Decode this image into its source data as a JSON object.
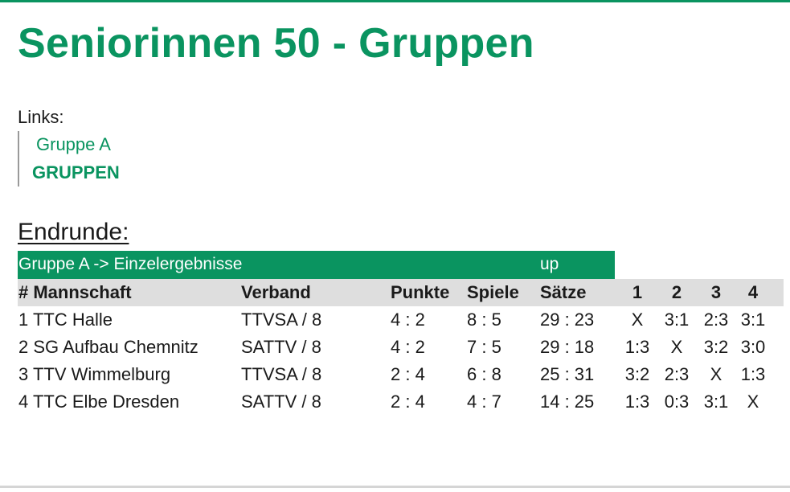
{
  "page_title": "Seniorinnen 50 - Gruppen",
  "links": {
    "label": "Links:",
    "items": [
      "Gruppe A",
      "GRUPPEN"
    ]
  },
  "section_heading": "Endrunde:",
  "group": {
    "title": "Gruppe A -> Einzelergebnisse",
    "up_link": "up"
  },
  "table": {
    "columns": [
      "# Mannschaft",
      "Verband",
      "Punkte",
      "Spiele",
      "Sätze",
      "1",
      "2",
      "3",
      "4"
    ],
    "rows": [
      {
        "team": "1 TTC Halle",
        "verband": "TTVSA / 8",
        "punkte": "4 : 2",
        "spiele": "8 : 5",
        "saetze": "29 : 23",
        "r1": "X",
        "r2": "3:1",
        "r3": "2:3",
        "r4": "3:1"
      },
      {
        "team": "2 SG Aufbau Chemnitz",
        "verband": "SATTV / 8",
        "punkte": "4 : 2",
        "spiele": "7 : 5",
        "saetze": "29 : 18",
        "r1": "1:3",
        "r2": "X",
        "r3": "3:2",
        "r4": "3:0"
      },
      {
        "team": "3 TTV Wimmelburg",
        "verband": "TTVSA / 8",
        "punkte": "2 : 4",
        "spiele": "6 : 8",
        "saetze": "25 : 31",
        "r1": "3:2",
        "r2": "2:3",
        "r3": "X",
        "r4": "1:3"
      },
      {
        "team": "4 TTC Elbe Dresden",
        "verband": "SATTV / 8",
        "punkte": "2 : 4",
        "spiele": "4 : 7",
        "saetze": "14 : 25",
        "r1": "1:3",
        "r2": "0:3",
        "r3": "3:1",
        "r4": "X"
      }
    ]
  },
  "colors": {
    "accent": "#0a9460",
    "header_bg": "#dedede"
  }
}
